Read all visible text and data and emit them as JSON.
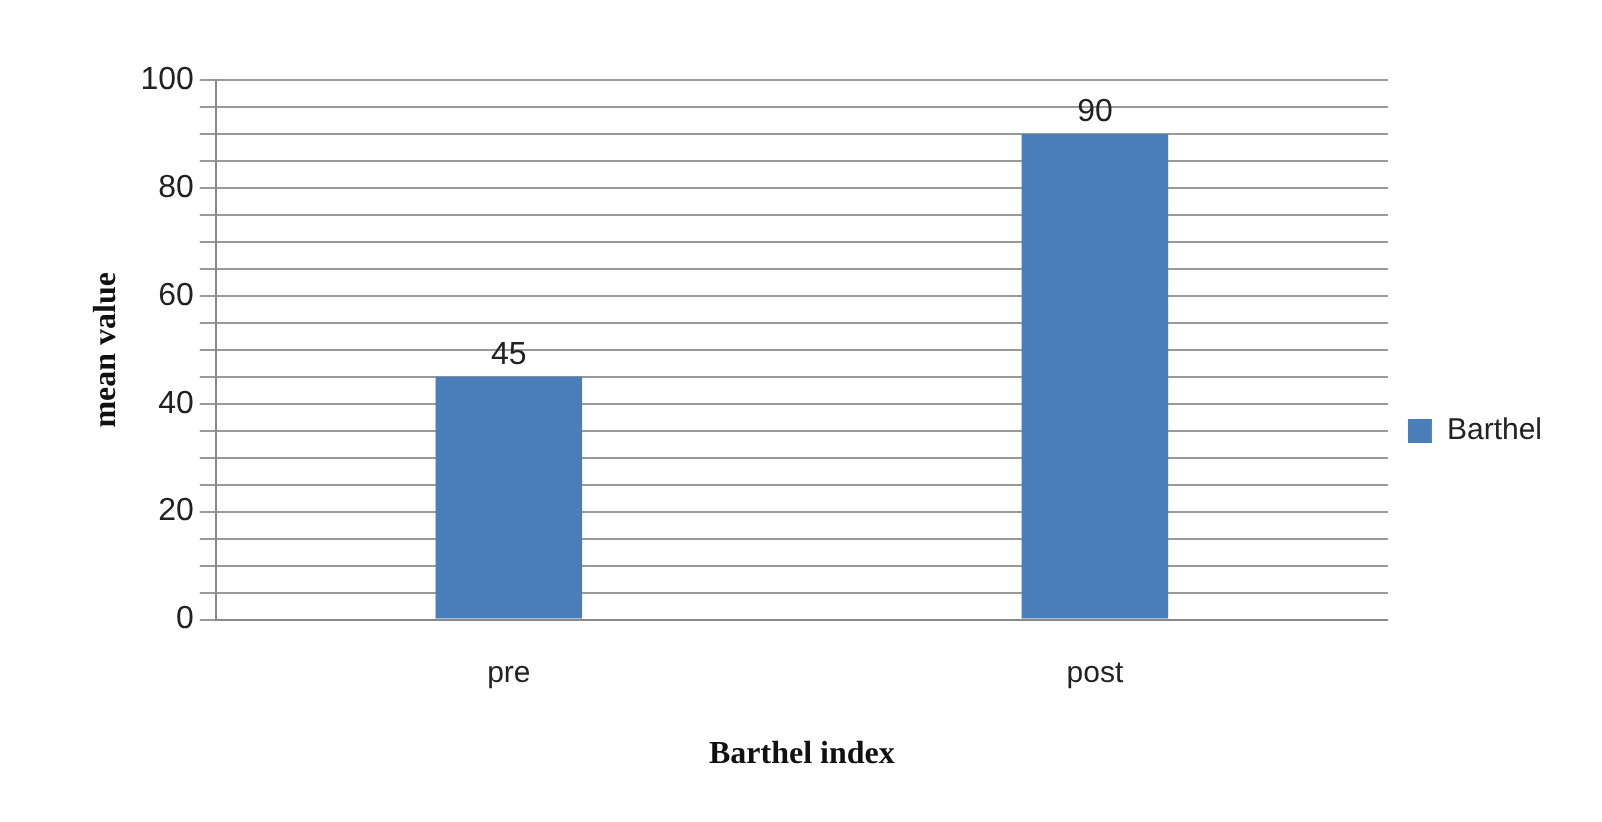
{
  "chart_data": {
    "type": "bar",
    "xlabel": "Barthel index",
    "ylabel": "mean value",
    "categories": [
      "pre",
      "post"
    ],
    "series": [
      {
        "name": "Barthel",
        "color": "#4a7ebb",
        "values": [
          45,
          90
        ]
      }
    ],
    "ylim": [
      0,
      100
    ],
    "yticks": [
      0,
      {
        "value": 5,
        "label": null
      },
      {
        "value": 10,
        "label": null
      },
      {
        "value": 15,
        "label": null
      },
      20,
      {
        "value": 25,
        "label": null
      },
      {
        "value": 30,
        "label": null
      },
      {
        "value": 35,
        "label": null
      },
      40,
      {
        "value": 45,
        "label": null
      },
      {
        "value": 50,
        "label": null
      },
      {
        "value": 55,
        "label": null
      },
      60,
      {
        "value": 65,
        "label": null
      },
      {
        "value": 70,
        "label": null
      },
      {
        "value": 75,
        "label": null
      },
      80,
      {
        "value": 85,
        "label": null
      },
      {
        "value": 90,
        "label": null
      },
      {
        "value": 95,
        "label": null
      },
      100
    ],
    "grid": "y",
    "legend": "right",
    "data_labels": true
  }
}
